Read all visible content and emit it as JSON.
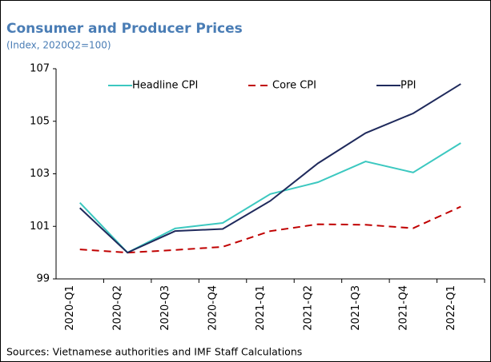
{
  "chart_data": {
    "type": "line",
    "title": "Consumer and Producer Prices",
    "subtitle": "(Index, 2020Q2=100)",
    "source": "Sources: Vietnamese authorities and  IMF Staff Calculations",
    "categories": [
      "2020-Q1",
      "2020-Q2",
      "2020-Q3",
      "2020-Q4",
      "2021-Q1",
      "2021-Q2",
      "2021-Q3",
      "2021-Q4",
      "2022-Q1"
    ],
    "series": [
      {
        "name": "Headline CPI",
        "color": "#3cc8c0",
        "line_style": "solid",
        "values": [
          101.9,
          100.0,
          100.92,
          101.13,
          102.23,
          102.68,
          103.47,
          103.05,
          104.17
        ]
      },
      {
        "name": "Core CPI",
        "color": "#c00000",
        "line_style": "dashed",
        "values": [
          100.12,
          100.0,
          100.1,
          100.22,
          100.82,
          101.08,
          101.06,
          100.93,
          101.75
        ]
      },
      {
        "name": "PPI",
        "color": "#1f2a5c",
        "line_style": "solid",
        "values": [
          101.7,
          100.0,
          100.82,
          100.9,
          101.97,
          103.4,
          104.55,
          105.3,
          106.42
        ]
      }
    ],
    "ylim": [
      99,
      107
    ],
    "yticks": [
      99,
      101,
      103,
      105,
      107
    ],
    "grid": false,
    "legend": "top"
  }
}
